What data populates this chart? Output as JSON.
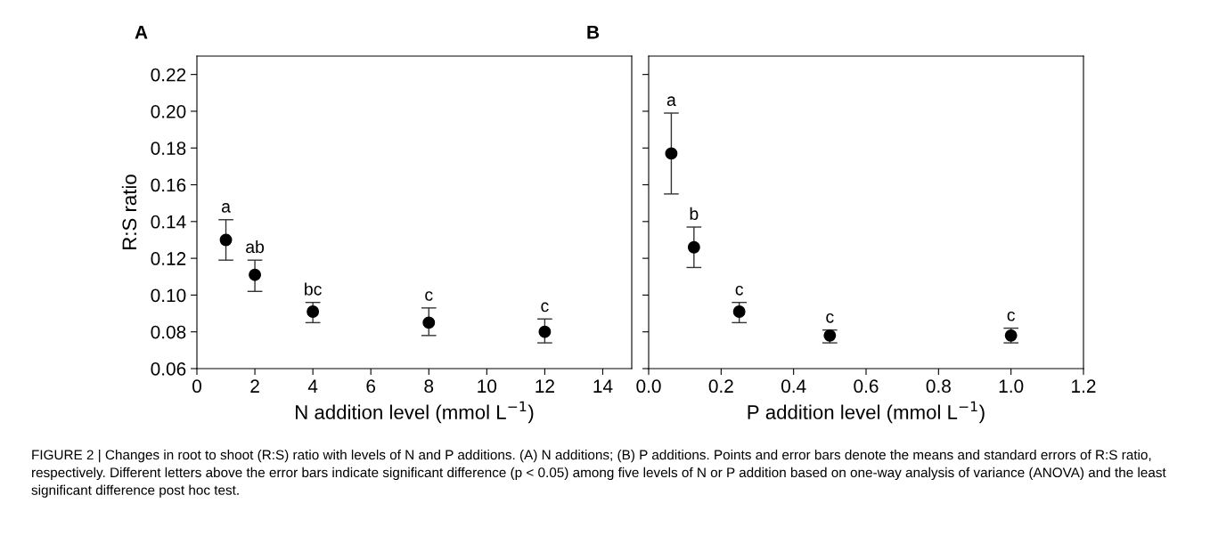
{
  "chart_data": [
    {
      "type": "scatter",
      "xlabel": "N addition level (mmol L$^{−1}$)",
      "ylabel": "R:S ratio",
      "marker": "circle",
      "color": "#000000",
      "x": [
        1,
        2,
        4,
        8,
        12
      ],
      "values": [
        0.13,
        0.111,
        0.091,
        0.085,
        0.08
      ],
      "errors": [
        [
          0.119,
          0.141
        ],
        [
          0.102,
          0.119
        ],
        [
          0.085,
          0.096
        ],
        [
          0.078,
          0.093
        ],
        [
          0.074,
          0.087
        ]
      ],
      "xlim": [
        0,
        15
      ],
      "xticks": [
        0,
        2,
        4,
        6,
        8,
        10,
        12,
        14
      ],
      "ylim": [
        0.06,
        0.23
      ],
      "yticks": [
        {
          "value": 0.06,
          "label": "0.06"
        },
        {
          "value": 0.08,
          "label": "0.08"
        },
        {
          "value": 0.1,
          "label": "0.10"
        },
        {
          "value": 0.12,
          "label": "0.12"
        },
        {
          "value": 0.14,
          "label": "0.14"
        },
        {
          "value": 0.16,
          "label": "0.16"
        },
        {
          "value": 0.18,
          "label": "0.18"
        },
        {
          "value": 0.2,
          "label": "0.20"
        },
        {
          "value": 0.22,
          "label": "0.22"
        }
      ],
      "grid": false,
      "legend": false,
      "annotations": [
        "A",
        "FIGURE 2 | Changes in root to shoot (R:S) ratio with levels of N and P additions. (A) N additions; (B) P additions. Points and error bars denote the means and standard errors of R:S ratio, respectively. Different letters above the error bars indicate significant difference (p < 0.05) among five levels of N or P addition based on one-way analysis of variance (ANOVA) and the least significant difference post hoc test.",
        {
          "text": "a",
          "x": 1,
          "y": 0.141
        },
        {
          "text": "ab",
          "x": 2,
          "y": 0.119
        },
        {
          "text": "bc",
          "x": 4,
          "y": 0.096
        },
        {
          "text": "c",
          "x": 8,
          "y": 0.093
        },
        {
          "text": "c",
          "x": 12,
          "y": 0.087
        }
      ]
    },
    {
      "type": "scatter",
      "xlabel": "P addition level (mmol L$^{−1}$)",
      "marker": "circle",
      "color": "#000000",
      "x": [
        0.0625,
        0.125,
        0.25,
        0.5,
        1.0
      ],
      "values": [
        0.177,
        0.126,
        0.091,
        0.078,
        0.078
      ],
      "errors": [
        [
          0.155,
          0.199
        ],
        [
          0.115,
          0.137
        ],
        [
          0.085,
          0.096
        ],
        [
          0.074,
          0.081
        ],
        [
          0.074,
          0.082
        ]
      ],
      "xlim": [
        0,
        1.2
      ],
      "xticks": [
        {
          "value": 0,
          "label": "0.0"
        },
        {
          "value": 0.2,
          "label": "0.2"
        },
        {
          "value": 0.4,
          "label": "0.4"
        },
        {
          "value": 0.6,
          "label": "0.6"
        },
        {
          "value": 0.8,
          "label": "0.8"
        },
        {
          "value": 1.0,
          "label": "1.0"
        },
        {
          "value": 1.2,
          "label": "1.2"
        }
      ],
      "ylim": [
        0.06,
        0.23
      ],
      "yticks": [
        0.06,
        0.08,
        0.1,
        0.12,
        0.14,
        0.16,
        0.18,
        0.2,
        0.22
      ],
      "tick_labels": "x",
      "grid": false,
      "legend": false,
      "annotations": [
        "B",
        {
          "text": "a",
          "x": 0.0625,
          "y": 0.199
        },
        {
          "text": "b",
          "x": 0.125,
          "y": 0.137
        },
        {
          "text": "c",
          "x": 0.25,
          "y": 0.096
        },
        {
          "text": "c",
          "x": 0.5,
          "y": 0.081
        },
        {
          "text": "c",
          "x": 1.0,
          "y": 0.082
        }
      ]
    }
  ]
}
